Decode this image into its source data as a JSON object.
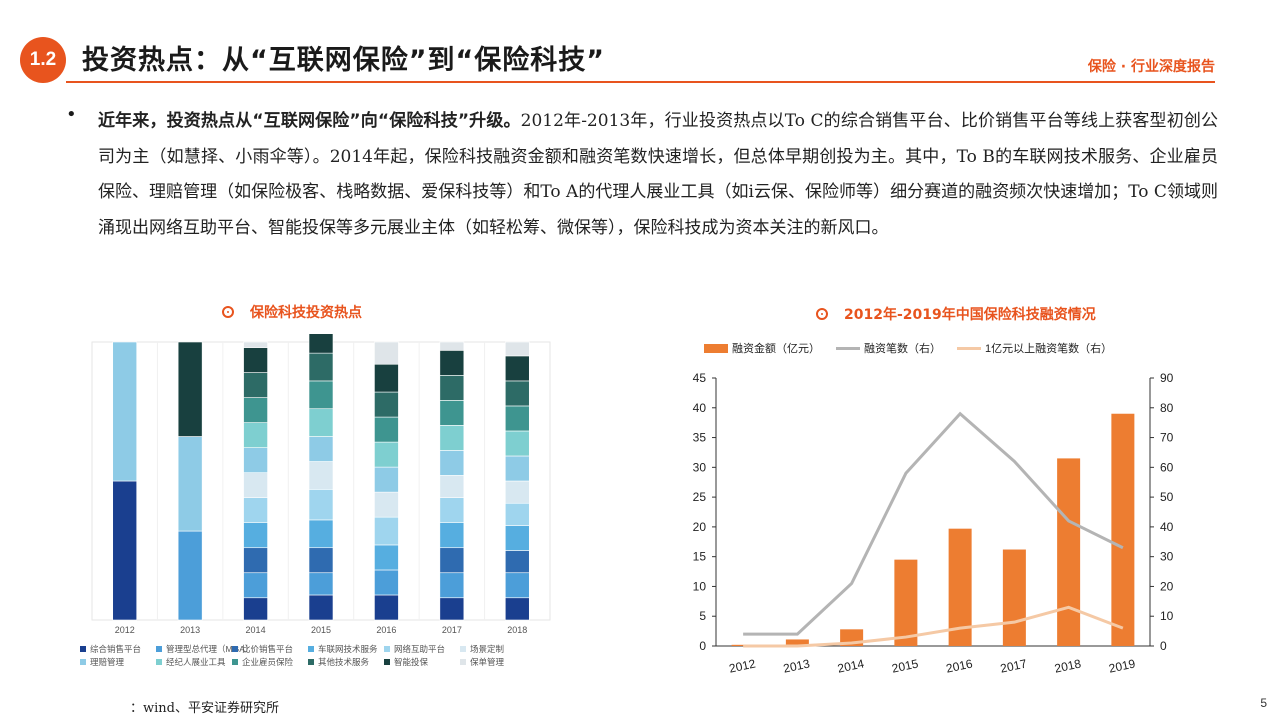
{
  "header": {
    "section": "1.2",
    "title": "投资热点：从“互联网保险”到“保险科技”",
    "right_label": "保险 · 行业深度报告"
  },
  "paragraph": {
    "bold": "近年来，投资热点从“互联网保险”向“保险科技”升级。",
    "text": "2012年-2013年，行业投资热点以To C的综合销售平台、比价销售平台等线上获客型初创公司为主（如慧择、小雨伞等）。2014年起，保险科技融资金额和融资笔数快速增长，但总体早期创投为主。其中，To B的车联网技术服务、企业雇员保险、理赔管理（如保险极客、栈略数据、爱保科技等）和To A的代理人展业工具（如i云保、保险师等）细分赛道的融资频次快速增加；To C领域则涌现出网络互助平台、智能投保等多元展业主体（如轻松筹、微保等），保险科技成为资本关注的新风口。"
  },
  "left_chart_title": "保险科技投资热点",
  "right_chart_title": "2012年-2019年中国保险科技融资情况",
  "source": "：wind、平安证券研究所",
  "page_number": "5",
  "chart_data": [
    {
      "type": "bar",
      "stacked": true,
      "normalized": true,
      "categories": [
        "2012",
        "2013",
        "2014",
        "2015",
        "2016",
        "2017",
        "2018"
      ],
      "series": [
        {
          "name": "综合销售平台",
          "color": "#1a3f8f",
          "values": [
            0.5,
            0,
            0.08,
            0.09,
            0.09,
            0.08,
            0.08
          ]
        },
        {
          "name": "管理型总代理（MGA）",
          "color": "#4c9ed9",
          "values": [
            0,
            0.32,
            0.09,
            0.08,
            0.09,
            0.09,
            0.09
          ]
        },
        {
          "name": "比价销售平台",
          "color": "#2f6bb0",
          "values": [
            0,
            0,
            0.09,
            0.09,
            0,
            0.09,
            0.08
          ]
        },
        {
          "name": "车联网技术服务",
          "color": "#56aee0",
          "values": [
            0,
            0,
            0.09,
            0.1,
            0.09,
            0.09,
            0.09
          ]
        },
        {
          "name": "网络互助平台",
          "color": "#9fd5ee",
          "values": [
            0,
            0,
            0.09,
            0.11,
            0.1,
            0.09,
            0.08
          ]
        },
        {
          "name": "场景定制",
          "color": "#d8e8f1",
          "values": [
            0,
            0,
            0.09,
            0.1,
            0.09,
            0.08,
            0.08
          ]
        },
        {
          "name": "理赔管理",
          "color": "#8ecbe6",
          "values": [
            0.5,
            0.34,
            0.09,
            0.09,
            0.09,
            0.09,
            0.09
          ]
        },
        {
          "name": "经纪人展业工具",
          "color": "#7ecfd0",
          "values": [
            0,
            0,
            0.09,
            0.1,
            0.09,
            0.09,
            0.09
          ]
        },
        {
          "name": "企业雇员保险",
          "color": "#3e9590",
          "values": [
            0,
            0,
            0.09,
            0.1,
            0.09,
            0.09,
            0.09
          ]
        },
        {
          "name": "其他技术服务",
          "color": "#2d6b66",
          "values": [
            0,
            0,
            0.09,
            0.1,
            0.09,
            0.09,
            0.09
          ]
        },
        {
          "name": "智能投保",
          "color": "#18403f",
          "values": [
            0,
            0.34,
            0.09,
            0.11,
            0.1,
            0.09,
            0.09
          ]
        },
        {
          "name": "保单管理",
          "color": "#dfe5e9",
          "values": [
            0,
            0,
            0.02,
            0.03,
            0.08,
            0.03,
            0.05
          ]
        }
      ]
    },
    {
      "type": "bar",
      "categories": [
        "2012",
        "2013",
        "2014",
        "2015",
        "2016",
        "2017",
        "2018",
        "2019"
      ],
      "series": [
        {
          "name": "融资金额（亿元）",
          "kind": "bar",
          "color": "#ed7d31",
          "axis": "left",
          "values": [
            0.2,
            1.1,
            2.8,
            14.5,
            19.7,
            16.2,
            31.5,
            39.0
          ]
        },
        {
          "name": "融资笔数（右）",
          "kind": "line",
          "color": "#b4b4b4",
          "axis": "right",
          "values": [
            4,
            4,
            21,
            58,
            78,
            62,
            42,
            33
          ]
        },
        {
          "name": "1亿元以上融资笔数（右）",
          "kind": "line",
          "color": "#f5c9a5",
          "axis": "right",
          "values": [
            0,
            0,
            1,
            3,
            6,
            8,
            13,
            6
          ]
        }
      ],
      "ylim_left": [
        0,
        45
      ],
      "yticks_left": [
        "0",
        "5",
        "10",
        "15",
        "20",
        "25",
        "30",
        "35",
        "40",
        "45"
      ],
      "ylim_right": [
        0,
        90
      ],
      "yticks_right": [
        "0",
        "10",
        "20",
        "30",
        "40",
        "50",
        "60",
        "70",
        "80",
        "90"
      ],
      "legend_position": "top"
    }
  ]
}
